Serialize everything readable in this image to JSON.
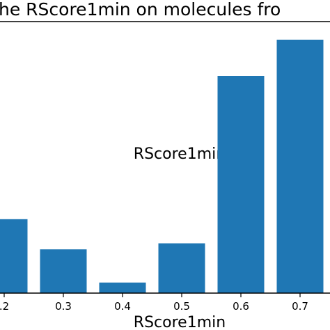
{
  "chart_data": {
    "type": "bar",
    "title": "he RScore1min on molecules fro",
    "xlabel": "RScore1min",
    "inner_xlabel": "RScore1min",
    "categories": [
      ".2",
      "0.3",
      "0.4",
      "0.5",
      "0.6",
      "0.7"
    ],
    "values": [
      0.245,
      0.145,
      0.035,
      0.165,
      0.72,
      0.84
    ],
    "ylim": [
      0,
      0.9
    ],
    "bar_color": "#1f77b4",
    "grid": false,
    "legend": "none"
  }
}
